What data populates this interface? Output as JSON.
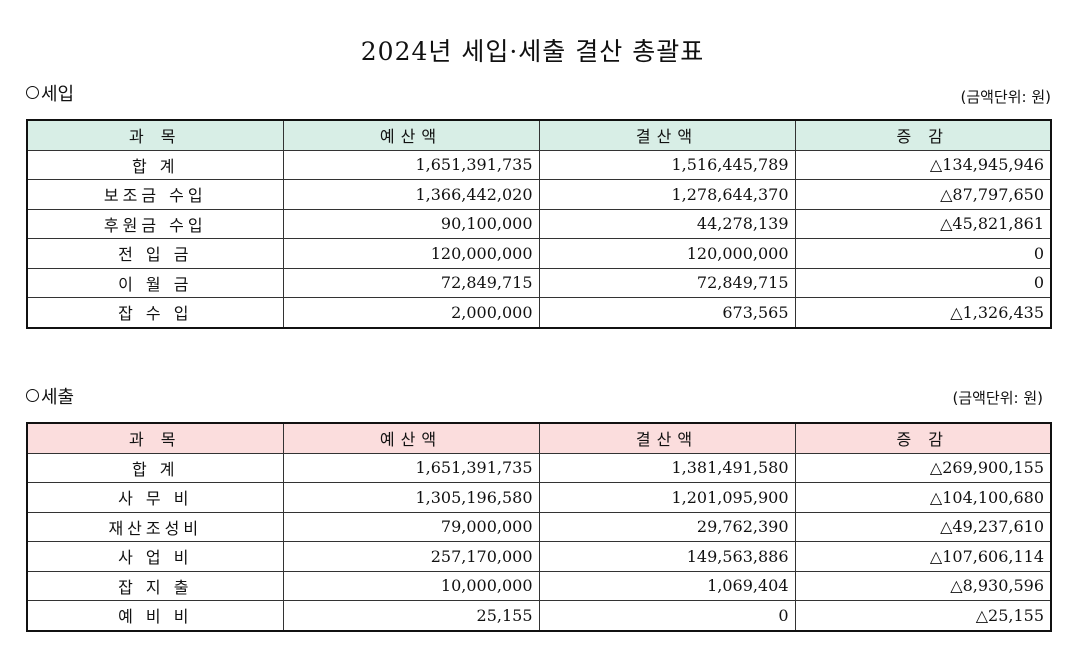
{
  "title": "2024년 세입·세출 결산 총괄표",
  "income": {
    "label": "세입",
    "unit": "(금액단위: 원)",
    "headers": [
      "과    목",
      "예산액",
      "결산액",
      "증  감"
    ],
    "rows": [
      {
        "item": "합   계",
        "budget": "1,651,391,735",
        "settled": "1,516,445,789",
        "diff": "△134,945,946"
      },
      {
        "item": "보조금 수입",
        "budget": "1,366,442,020",
        "settled": "1,278,644,370",
        "diff": "△87,797,650"
      },
      {
        "item": "후원금 수입",
        "budget": "90,100,000",
        "settled": "44,278,139",
        "diff": "△45,821,861"
      },
      {
        "item": "전 입 금",
        "budget": "120,000,000",
        "settled": "120,000,000",
        "diff": "0"
      },
      {
        "item": "이 월 금",
        "budget": "72,849,715",
        "settled": "72,849,715",
        "diff": "0"
      },
      {
        "item": "잡 수 입",
        "budget": "2,000,000",
        "settled": "673,565",
        "diff": "△1,326,435"
      }
    ]
  },
  "expense": {
    "label": "세출",
    "unit": "(금액단위: 원)",
    "headers": [
      "과    목",
      "예산액",
      "결산액",
      "증  감"
    ],
    "rows": [
      {
        "item": "합   계",
        "budget": "1,651,391,735",
        "settled": "1,381,491,580",
        "diff": "△269,900,155"
      },
      {
        "item": "사 무 비",
        "budget": "1,305,196,580",
        "settled": "1,201,095,900",
        "diff": "△104,100,680"
      },
      {
        "item": "재산조성비",
        "budget": "79,000,000",
        "settled": "29,762,390",
        "diff": "△49,237,610"
      },
      {
        "item": "사 업 비",
        "budget": "257,170,000",
        "settled": "149,563,886",
        "diff": "△107,606,114"
      },
      {
        "item": "잡 지 출",
        "budget": "10,000,000",
        "settled": "1,069,404",
        "diff": "△8,930,596"
      },
      {
        "item": "예 비 비",
        "budget": "25,155",
        "settled": "0",
        "diff": "△25,155"
      }
    ]
  },
  "colors": {
    "income_header_bg": "#d8eee6",
    "expense_header_bg": "#fbdddd"
  }
}
